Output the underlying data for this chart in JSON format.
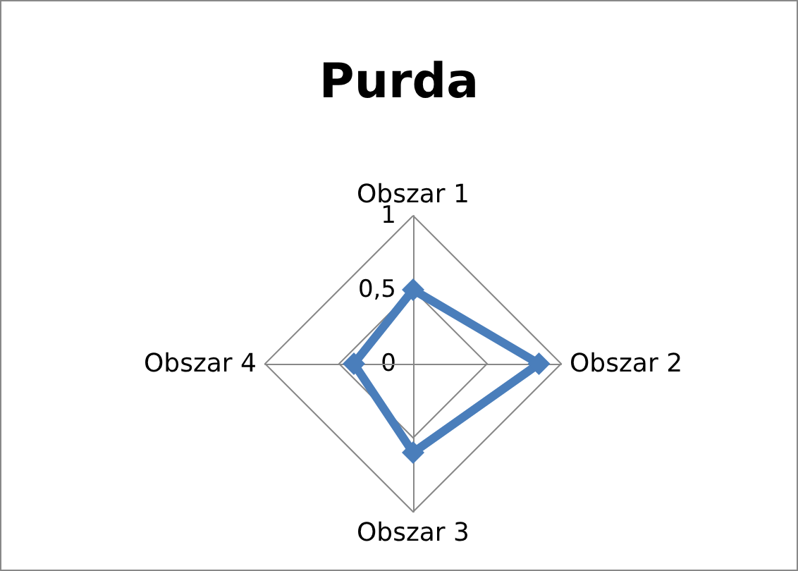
{
  "chart_data": {
    "type": "radar",
    "title": "Purda",
    "categories": [
      "Obszar 1",
      "Obszar 2",
      "Obszar 3",
      "Obszar 4"
    ],
    "series": [
      {
        "color": "#4a7ebb",
        "values": [
          0.5,
          0.85,
          0.6,
          0.4
        ]
      }
    ],
    "ylim": [
      0,
      1
    ],
    "yticks": [
      0,
      {
        "value": 0.5,
        "label": "0,5"
      },
      1
    ],
    "marker": "diamond"
  }
}
